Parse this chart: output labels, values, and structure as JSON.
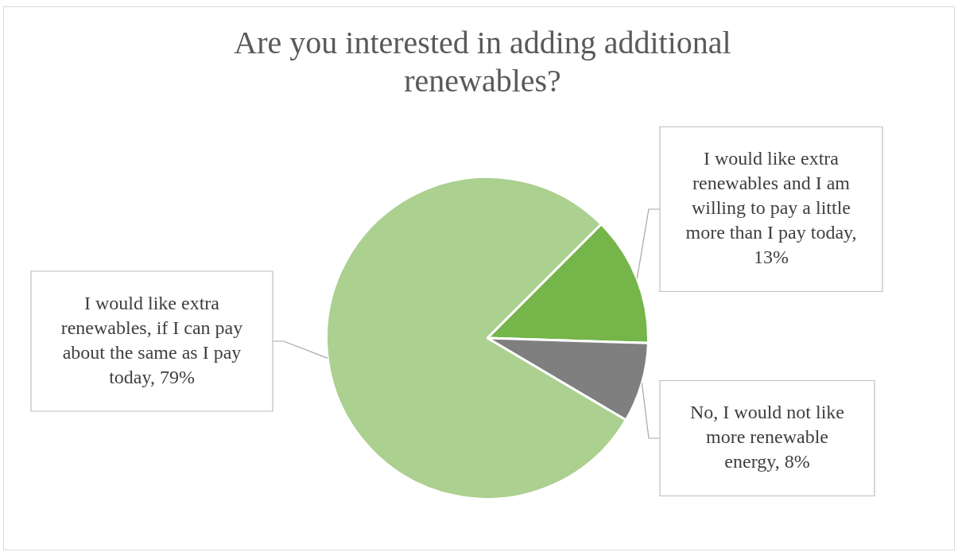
{
  "chart_data": {
    "type": "pie",
    "title": "Are you interested in adding additional renewables?",
    "categories": [
      "I would like extra renewables and I am willing to pay a little more than I pay today, 13%",
      "No, I would not like more renewable energy, 8%",
      "I would like extra renewables, if I can pay about the same as I pay today, 79%"
    ],
    "values": [
      13,
      8,
      79
    ],
    "colors": [
      "#75b54a",
      "#7f7f7f",
      "#abd08f"
    ],
    "legend": false
  }
}
